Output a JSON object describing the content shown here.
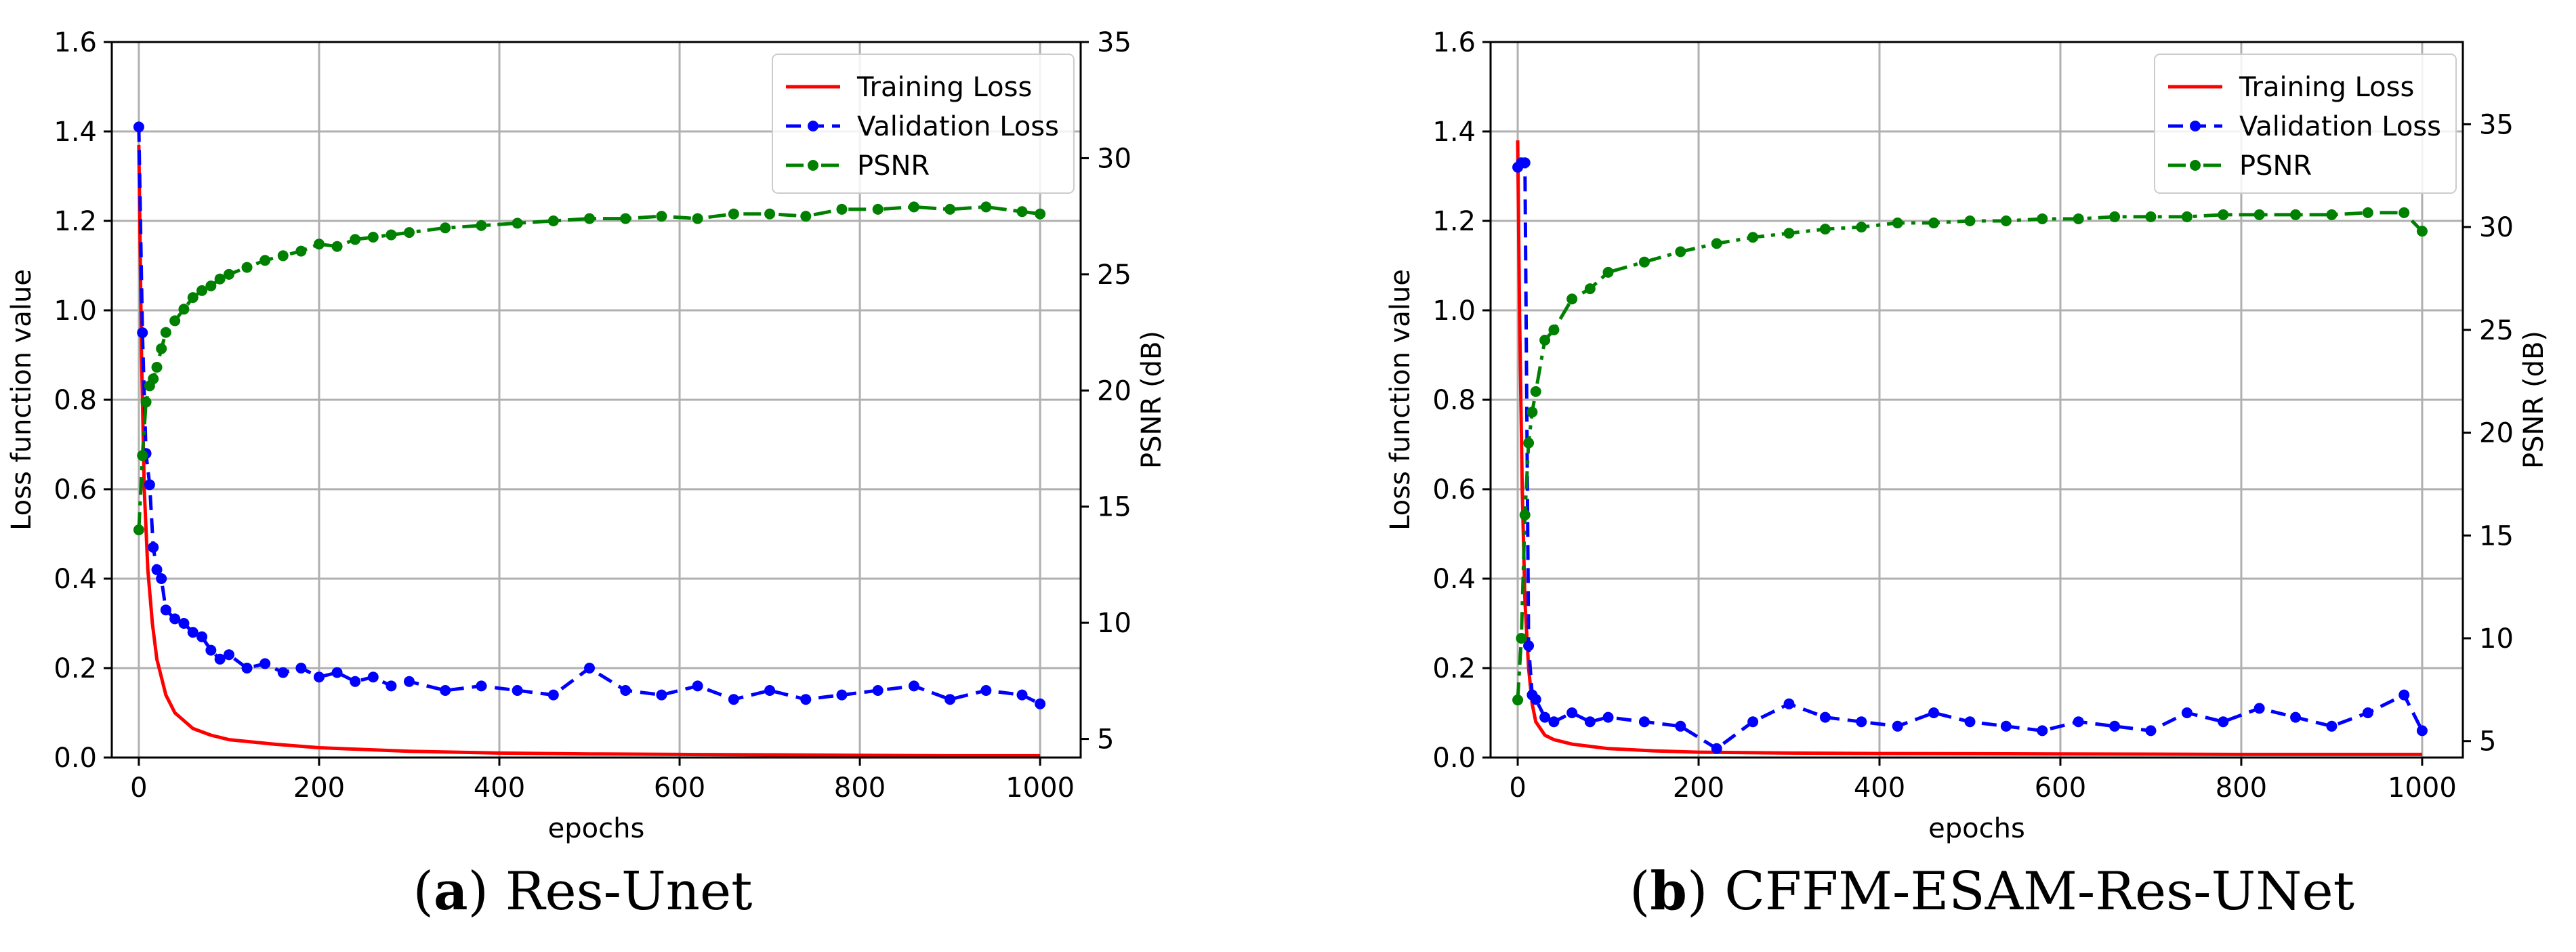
{
  "colors": {
    "training": "#ff0000",
    "validation": "#0000ff",
    "psnr": "#008000",
    "grid": "#b0b0b0",
    "axis": "#000000"
  },
  "captions": {
    "a": {
      "label": "a",
      "title": "Res-Unet"
    },
    "b": {
      "label": "b",
      "title": "CFFM-ESAM-Res-UNet"
    }
  },
  "chart_data": [
    {
      "id": "a",
      "type": "line",
      "xlabel": "epochs",
      "ylabel": "Loss function value",
      "y2label": "PSNR (dB)",
      "xlim": [
        -30,
        1045
      ],
      "xticks": [
        0,
        200,
        400,
        600,
        800,
        1000
      ],
      "ylim": [
        0,
        1.6
      ],
      "yticks": [
        0.0,
        0.2,
        0.4,
        0.6,
        0.8,
        1.0,
        1.2,
        1.4,
        1.6
      ],
      "ytick_labels": [
        "0.0",
        "0.2",
        "0.4",
        "0.6",
        "0.8",
        "1.0",
        "1.2",
        "1.4",
        "1.6"
      ],
      "y2lim": [
        4.2,
        35
      ],
      "y2ticks": [
        5,
        10,
        15,
        20,
        25,
        30,
        35
      ],
      "legend": {
        "position": "top-right",
        "entries": [
          "Training Loss",
          "Validation Loss",
          "PSNR"
        ]
      },
      "series": [
        {
          "name": "Training Loss",
          "axis": "left",
          "style": "solid",
          "x": [
            0,
            3,
            6,
            10,
            15,
            20,
            30,
            40,
            60,
            80,
            100,
            150,
            200,
            300,
            400,
            500,
            600,
            700,
            800,
            900,
            1000
          ],
          "values": [
            1.37,
            0.9,
            0.6,
            0.42,
            0.3,
            0.22,
            0.14,
            0.1,
            0.065,
            0.05,
            0.04,
            0.03,
            0.022,
            0.014,
            0.01,
            0.008,
            0.007,
            0.006,
            0.005,
            0.004,
            0.004
          ]
        },
        {
          "name": "Validation Loss",
          "axis": "left",
          "style": "dashed",
          "x": [
            0,
            4,
            8,
            12,
            16,
            20,
            25,
            30,
            40,
            50,
            60,
            70,
            80,
            90,
            100,
            120,
            140,
            160,
            180,
            200,
            220,
            240,
            260,
            280,
            300,
            340,
            380,
            420,
            460,
            500,
            540,
            580,
            620,
            660,
            700,
            740,
            780,
            820,
            860,
            900,
            940,
            980,
            1000
          ],
          "values": [
            1.41,
            0.95,
            0.68,
            0.61,
            0.47,
            0.42,
            0.4,
            0.33,
            0.31,
            0.3,
            0.28,
            0.27,
            0.24,
            0.22,
            0.23,
            0.2,
            0.21,
            0.19,
            0.2,
            0.18,
            0.19,
            0.17,
            0.18,
            0.16,
            0.17,
            0.15,
            0.16,
            0.15,
            0.14,
            0.2,
            0.15,
            0.14,
            0.16,
            0.13,
            0.15,
            0.13,
            0.14,
            0.15,
            0.16,
            0.13,
            0.15,
            0.14,
            0.12
          ]
        },
        {
          "name": "PSNR",
          "axis": "right",
          "style": "dashdot",
          "x": [
            0,
            4,
            8,
            12,
            16,
            20,
            25,
            30,
            40,
            50,
            60,
            70,
            80,
            90,
            100,
            120,
            140,
            160,
            180,
            200,
            220,
            240,
            260,
            280,
            300,
            340,
            380,
            420,
            460,
            500,
            540,
            580,
            620,
            660,
            700,
            740,
            780,
            820,
            860,
            900,
            940,
            980,
            1000
          ],
          "values": [
            14.0,
            17.2,
            19.5,
            20.2,
            20.5,
            21.0,
            21.8,
            22.5,
            23.0,
            23.5,
            24.0,
            24.3,
            24.5,
            24.8,
            25.0,
            25.3,
            25.6,
            25.8,
            26.0,
            26.3,
            26.2,
            26.5,
            26.6,
            26.7,
            26.8,
            27.0,
            27.1,
            27.2,
            27.3,
            27.4,
            27.4,
            27.5,
            27.4,
            27.6,
            27.6,
            27.5,
            27.8,
            27.8,
            27.9,
            27.8,
            27.9,
            27.7,
            27.6
          ]
        }
      ]
    },
    {
      "id": "b",
      "type": "line",
      "xlabel": "epochs",
      "ylabel": "Loss function value",
      "y2label": "PSNR (dB)",
      "xlim": [
        -30,
        1045
      ],
      "xticks": [
        0,
        200,
        400,
        600,
        800,
        1000
      ],
      "ylim": [
        0,
        1.6
      ],
      "yticks": [
        0.0,
        0.2,
        0.4,
        0.6,
        0.8,
        1.0,
        1.2,
        1.4,
        1.6
      ],
      "ytick_labels": [
        "0.0",
        "0.2",
        "0.4",
        "0.6",
        "0.8",
        "1.0",
        "1.2",
        "1.4",
        "1.6"
      ],
      "y2lim": [
        4.2,
        39.0
      ],
      "y2ticks": [
        5,
        10,
        15,
        20,
        25,
        30,
        35
      ],
      "legend": {
        "position": "top-right",
        "entries": [
          "Training Loss",
          "Validation Loss",
          "PSNR"
        ]
      },
      "series": [
        {
          "name": "Training Loss",
          "axis": "left",
          "style": "solid",
          "x": [
            0,
            2,
            5,
            8,
            12,
            16,
            20,
            30,
            40,
            60,
            80,
            100,
            150,
            200,
            300,
            400,
            600,
            800,
            1000
          ],
          "values": [
            1.38,
            1.0,
            0.6,
            0.35,
            0.2,
            0.12,
            0.08,
            0.05,
            0.04,
            0.03,
            0.025,
            0.02,
            0.015,
            0.012,
            0.01,
            0.009,
            0.008,
            0.007,
            0.007
          ]
        },
        {
          "name": "Validation Loss",
          "axis": "left",
          "style": "dashed",
          "x": [
            0,
            4,
            8,
            12,
            16,
            20,
            30,
            40,
            60,
            80,
            100,
            140,
            180,
            220,
            260,
            300,
            340,
            380,
            420,
            460,
            500,
            540,
            580,
            620,
            660,
            700,
            740,
            780,
            820,
            860,
            900,
            940,
            980,
            1000
          ],
          "values": [
            1.32,
            1.33,
            1.33,
            0.25,
            0.14,
            0.13,
            0.09,
            0.08,
            0.1,
            0.08,
            0.09,
            0.08,
            0.07,
            0.02,
            0.08,
            0.12,
            0.09,
            0.08,
            0.07,
            0.1,
            0.08,
            0.07,
            0.06,
            0.08,
            0.07,
            0.06,
            0.1,
            0.08,
            0.11,
            0.09,
            0.07,
            0.1,
            0.14,
            0.06
          ]
        },
        {
          "name": "PSNR",
          "axis": "right",
          "style": "dashdot",
          "x": [
            0,
            4,
            8,
            12,
            16,
            20,
            30,
            40,
            60,
            80,
            100,
            140,
            180,
            220,
            260,
            300,
            340,
            380,
            420,
            460,
            500,
            540,
            580,
            620,
            660,
            700,
            740,
            780,
            820,
            860,
            900,
            940,
            980,
            1000
          ],
          "values": [
            7.0,
            10.0,
            16.0,
            19.5,
            21.0,
            22.0,
            24.5,
            25.0,
            26.5,
            27.0,
            27.8,
            28.3,
            28.8,
            29.2,
            29.5,
            29.7,
            29.9,
            30.0,
            30.2,
            30.2,
            30.3,
            30.3,
            30.4,
            30.4,
            30.5,
            30.5,
            30.5,
            30.6,
            30.6,
            30.6,
            30.6,
            30.7,
            30.7,
            29.8
          ]
        }
      ]
    }
  ]
}
